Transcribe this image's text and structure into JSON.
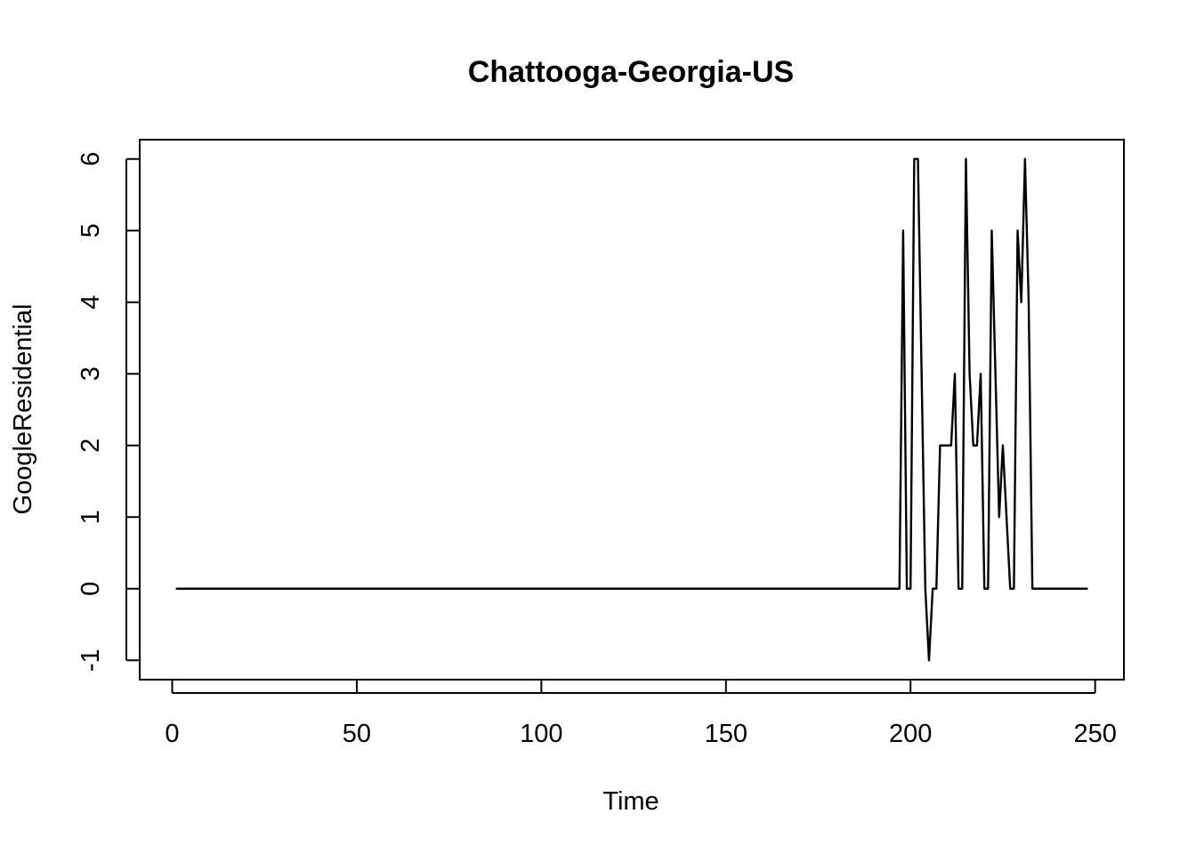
{
  "chart_data": {
    "type": "line",
    "title": "Chattooga-Georgia-US",
    "xlabel": "Time",
    "ylabel": "GoogleResidential",
    "xlim": [
      -8.8,
      257.8
    ],
    "ylim": [
      -1.27,
      6.27
    ],
    "xticks": [
      0,
      50,
      100,
      150,
      200,
      250
    ],
    "yticks": [
      -1,
      0,
      1,
      2,
      3,
      4,
      5,
      6
    ],
    "grid": false,
    "legend": "none",
    "series": [
      {
        "x": [
          1,
          197,
          198,
          199,
          200,
          201,
          202,
          203,
          204,
          205,
          206,
          207,
          208,
          209,
          210,
          211,
          212,
          213,
          214,
          215,
          216,
          217,
          218,
          219,
          220,
          221,
          222,
          223,
          224,
          225,
          226,
          227,
          228,
          229,
          230,
          231,
          232,
          233,
          234,
          248
        ],
        "y": [
          0,
          0,
          5,
          0,
          0,
          6,
          6,
          3,
          0,
          -1,
          0,
          0,
          2,
          2,
          2,
          2,
          3,
          0,
          0,
          6,
          3,
          2,
          2,
          3,
          0,
          0,
          5,
          3,
          1,
          2,
          1,
          0,
          0,
          5,
          4,
          6,
          4,
          0,
          0,
          0
        ]
      }
    ]
  }
}
